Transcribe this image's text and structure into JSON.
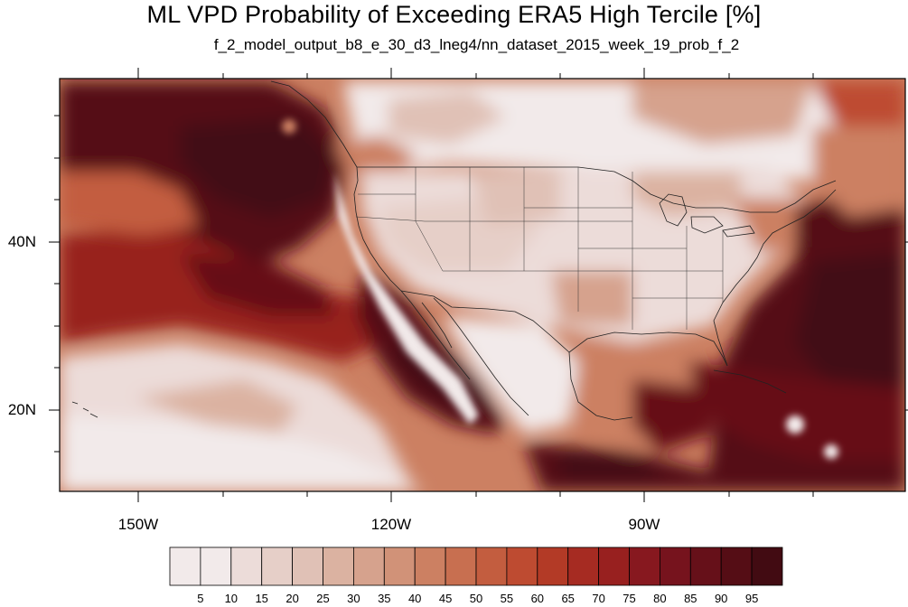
{
  "title": "ML VPD Probability of Exceeding ERA5 High Tercile [%]",
  "subtitle": "f_2_model_output_b8_e_30_d3_lneg4/nn_dataset_2015_week_19_prob_f_2",
  "map": {
    "projection": "lat-lon",
    "lon_range": [
      -159.5,
      -62
    ],
    "lat_range": [
      10,
      59
    ],
    "lat_labels": [
      {
        "value": 40,
        "label": "40N"
      },
      {
        "value": 20,
        "label": "20N"
      }
    ],
    "lon_labels": [
      {
        "value": -150,
        "label": "150W"
      },
      {
        "value": -120,
        "label": "120W"
      },
      {
        "value": -90,
        "label": "90W"
      }
    ]
  },
  "colorbar": {
    "levels": [
      "5",
      "10",
      "15",
      "20",
      "25",
      "30",
      "35",
      "40",
      "45",
      "50",
      "55",
      "60",
      "65",
      "70",
      "75",
      "80",
      "85",
      "90",
      "95"
    ],
    "colors": [
      "#f2eaea",
      "#ecdcd9",
      "#e6cfc8",
      "#e0c1b6",
      "#dbb2a1",
      "#d6a28d",
      "#d19278",
      "#cc8062",
      "#c86f50",
      "#c35d3f",
      "#be4b31",
      "#b33a26",
      "#a62b22",
      "#98201f",
      "#87181f",
      "#76131d",
      "#661019",
      "#550d15",
      "#420b12"
    ]
  }
}
